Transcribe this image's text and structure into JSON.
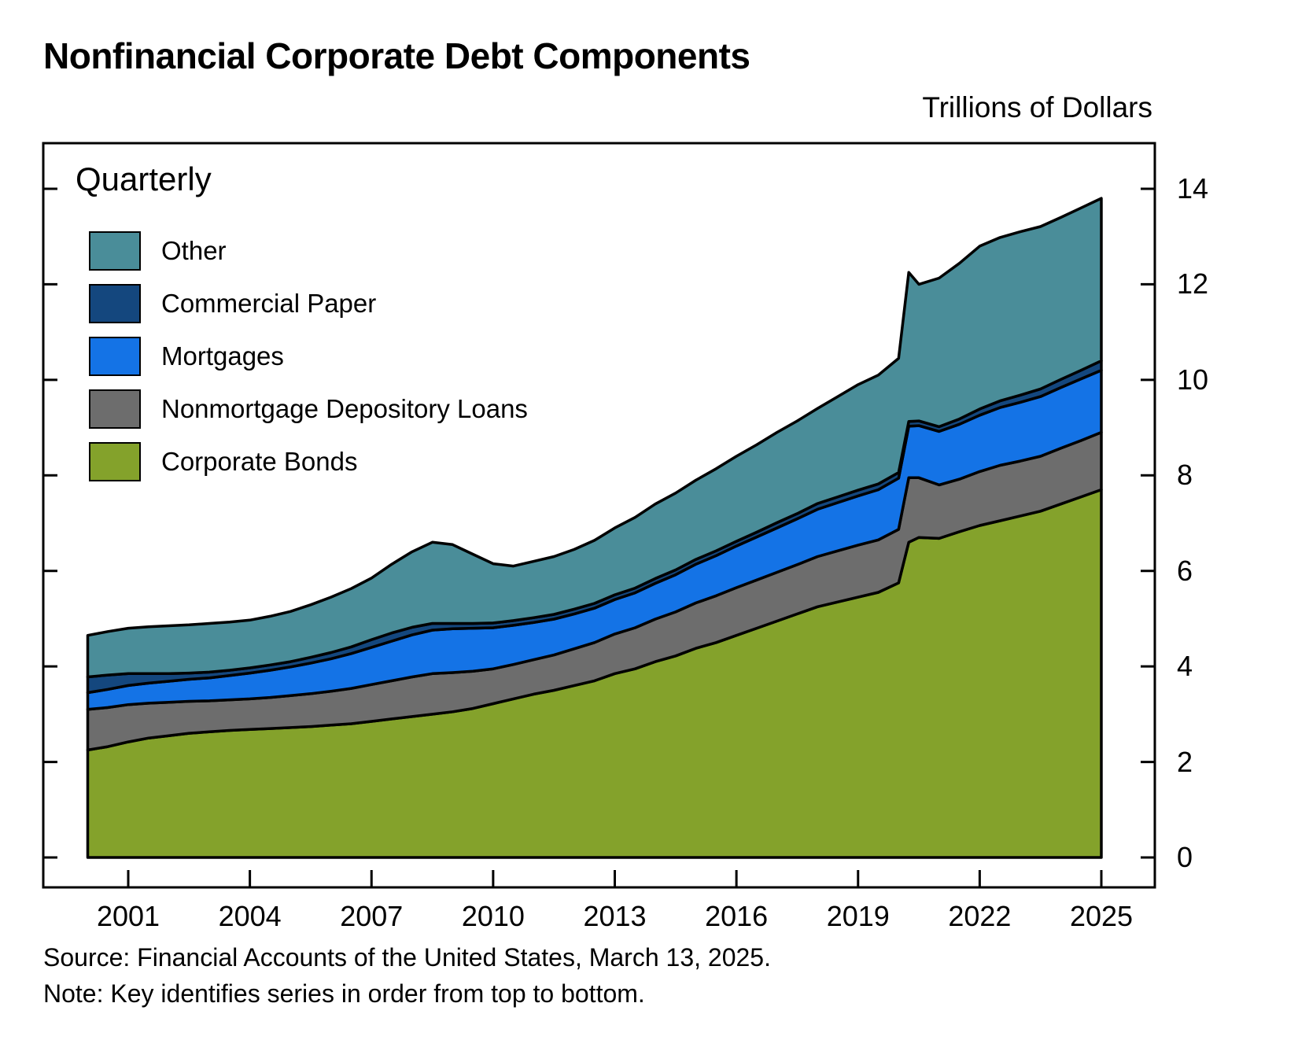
{
  "source_line": "Source: Financial Accounts of the United States, March 13, 2025.",
  "note_line": "Note: Key identifies series in order from top to bottom.",
  "chart_data": {
    "type": "area",
    "stacked": true,
    "title": "Nonfinancial Corporate Debt Components",
    "ylabel": "Trillions of Dollars",
    "frequency": "Quarterly",
    "legend_position": "upper-left-inside",
    "legend_note": "Key identifies series in order from top to bottom",
    "grid": false,
    "xlim": [
      2000,
      2025
    ],
    "ylim": [
      0,
      14
    ],
    "xticks": [
      2001,
      2004,
      2007,
      2010,
      2013,
      2016,
      2019,
      2022,
      2025
    ],
    "yticks": [
      0,
      2,
      4,
      6,
      8,
      10,
      12,
      14
    ],
    "x": [
      2000,
      2000.5,
      2001,
      2001.5,
      2002,
      2002.5,
      2003,
      2003.5,
      2004,
      2004.5,
      2005,
      2005.5,
      2006,
      2006.5,
      2007,
      2007.5,
      2008,
      2008.5,
      2009,
      2009.5,
      2010,
      2010.5,
      2011,
      2011.5,
      2012,
      2012.5,
      2013,
      2013.5,
      2014,
      2014.5,
      2015,
      2015.5,
      2016,
      2016.5,
      2017,
      2017.5,
      2018,
      2018.5,
      2019,
      2019.5,
      2020,
      2020.25,
      2020.5,
      2021,
      2021.5,
      2022,
      2022.5,
      2023,
      2023.5,
      2024,
      2024.5,
      2025
    ],
    "series": [
      {
        "name": "Corporate Bonds",
        "color": "#84a22b",
        "values": [
          2.25,
          2.32,
          2.42,
          2.5,
          2.55,
          2.6,
          2.63,
          2.66,
          2.68,
          2.7,
          2.72,
          2.74,
          2.77,
          2.8,
          2.85,
          2.9,
          2.95,
          3.0,
          3.05,
          3.12,
          3.22,
          3.32,
          3.42,
          3.5,
          3.6,
          3.7,
          3.85,
          3.95,
          4.1,
          4.22,
          4.38,
          4.5,
          4.65,
          4.8,
          4.95,
          5.1,
          5.25,
          5.35,
          5.45,
          5.55,
          5.75,
          6.6,
          6.7,
          6.68,
          6.82,
          6.95,
          7.05,
          7.15,
          7.25,
          7.4,
          7.55,
          7.7
        ]
      },
      {
        "name": "Nonmortgage Depository Loans",
        "color": "#6d6d6d",
        "values": [
          0.85,
          0.82,
          0.78,
          0.73,
          0.7,
          0.67,
          0.65,
          0.64,
          0.64,
          0.65,
          0.67,
          0.69,
          0.71,
          0.74,
          0.77,
          0.8,
          0.83,
          0.85,
          0.82,
          0.78,
          0.73,
          0.72,
          0.72,
          0.74,
          0.77,
          0.8,
          0.83,
          0.86,
          0.89,
          0.92,
          0.95,
          0.98,
          1.0,
          1.01,
          1.02,
          1.03,
          1.05,
          1.07,
          1.09,
          1.1,
          1.12,
          1.35,
          1.25,
          1.12,
          1.1,
          1.13,
          1.16,
          1.15,
          1.15,
          1.17,
          1.18,
          1.2
        ]
      },
      {
        "name": "Mortgages",
        "color": "#1473e6",
        "values": [
          0.35,
          0.38,
          0.4,
          0.42,
          0.44,
          0.46,
          0.48,
          0.51,
          0.54,
          0.57,
          0.6,
          0.64,
          0.68,
          0.73,
          0.78,
          0.83,
          0.88,
          0.91,
          0.92,
          0.9,
          0.86,
          0.82,
          0.78,
          0.75,
          0.73,
          0.72,
          0.72,
          0.73,
          0.75,
          0.78,
          0.81,
          0.84,
          0.87,
          0.9,
          0.93,
          0.96,
          0.99,
          1.01,
          1.03,
          1.05,
          1.07,
          1.08,
          1.09,
          1.12,
          1.15,
          1.18,
          1.21,
          1.23,
          1.25,
          1.27,
          1.29,
          1.3
        ]
      },
      {
        "name": "Commercial Paper",
        "color": "#14477e",
        "values": [
          0.33,
          0.3,
          0.25,
          0.2,
          0.16,
          0.13,
          0.12,
          0.11,
          0.11,
          0.11,
          0.11,
          0.12,
          0.13,
          0.14,
          0.16,
          0.17,
          0.16,
          0.14,
          0.11,
          0.1,
          0.1,
          0.1,
          0.1,
          0.1,
          0.1,
          0.1,
          0.1,
          0.1,
          0.1,
          0.1,
          0.1,
          0.1,
          0.1,
          0.1,
          0.11,
          0.11,
          0.12,
          0.12,
          0.12,
          0.12,
          0.12,
          0.1,
          0.1,
          0.1,
          0.11,
          0.13,
          0.14,
          0.15,
          0.16,
          0.17,
          0.18,
          0.2
        ]
      },
      {
        "name": "Other",
        "color": "#4a8d99",
        "values": [
          0.87,
          0.91,
          0.95,
          0.98,
          1.0,
          1.01,
          1.02,
          1.01,
          1.0,
          1.02,
          1.05,
          1.1,
          1.16,
          1.22,
          1.29,
          1.44,
          1.58,
          1.7,
          1.65,
          1.45,
          1.24,
          1.14,
          1.18,
          1.21,
          1.25,
          1.32,
          1.4,
          1.48,
          1.56,
          1.61,
          1.66,
          1.72,
          1.78,
          1.83,
          1.89,
          1.94,
          1.99,
          2.1,
          2.21,
          2.28,
          2.39,
          3.12,
          2.86,
          3.11,
          3.26,
          3.41,
          3.42,
          3.42,
          3.4,
          3.39,
          3.4,
          3.4
        ]
      }
    ]
  }
}
